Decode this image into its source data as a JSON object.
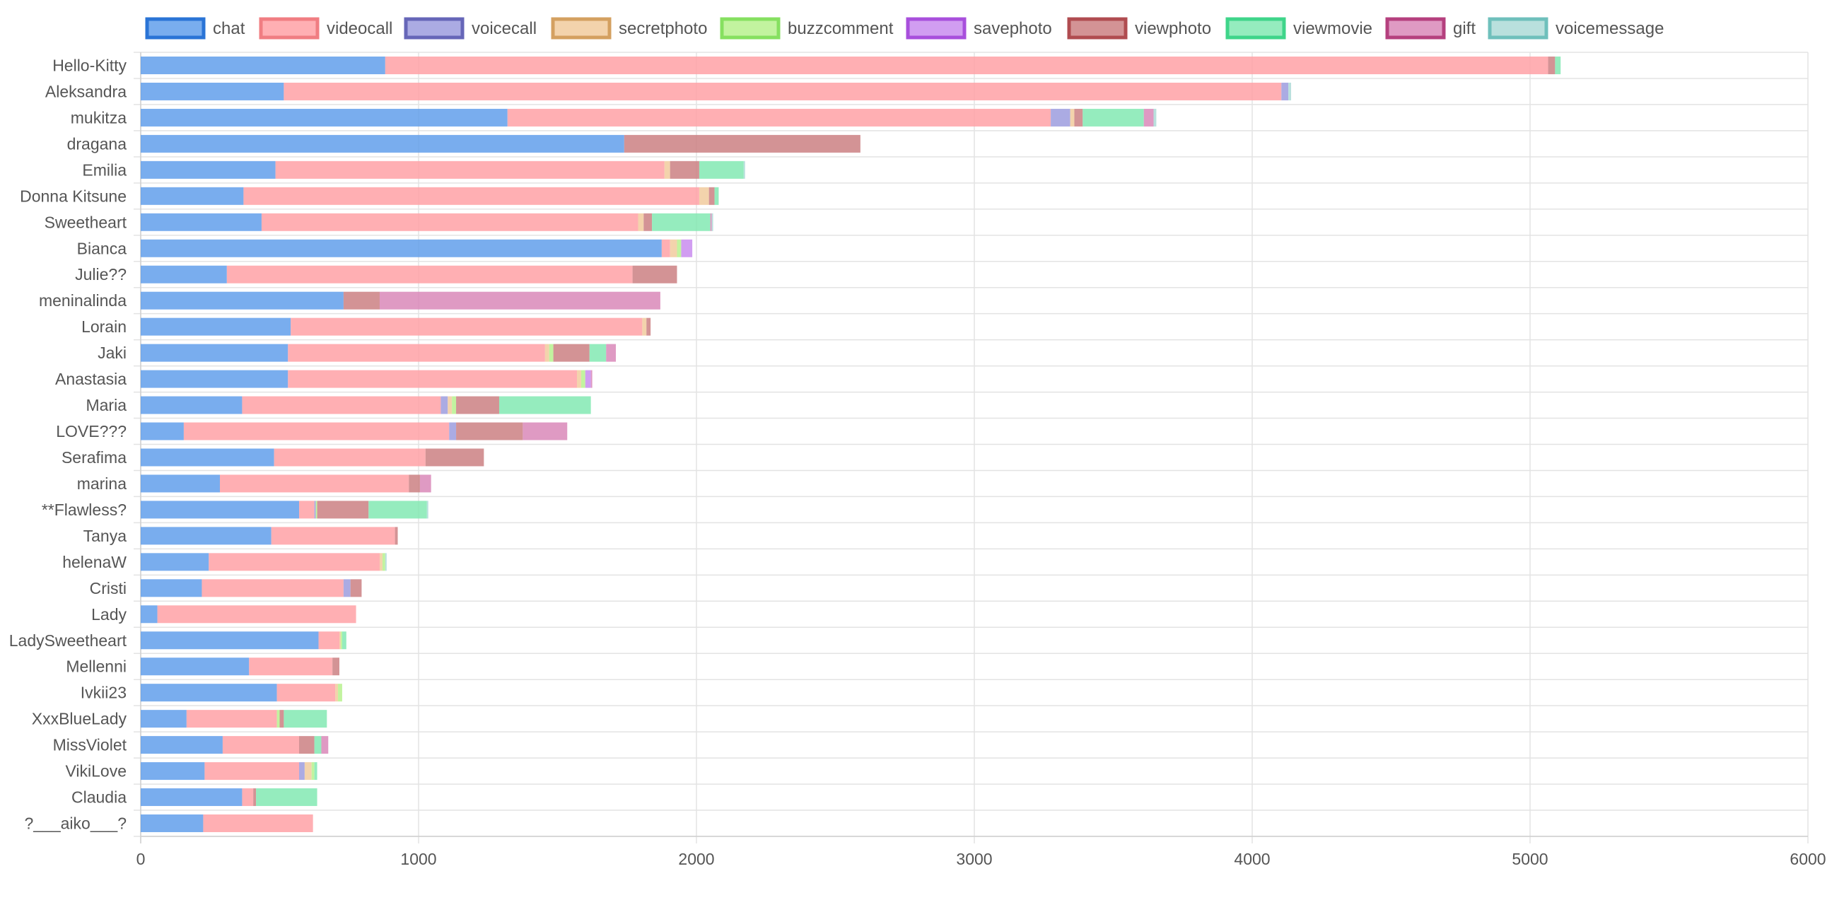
{
  "chart_data": {
    "type": "bar",
    "orientation": "horizontal",
    "stacked": true,
    "legend_position": "top",
    "grid": true,
    "xlim": [
      0,
      6000
    ],
    "x_ticks": [
      "0",
      "1000",
      "2000",
      "3000",
      "4000",
      "5000",
      "6000"
    ],
    "categories": [
      "Hello-Kitty",
      "Aleksandra",
      "mukitza",
      "dragana",
      "Emilia",
      "Donna Kitsune",
      "Sweetheart",
      "Bianca",
      "Julie??",
      "meninalinda",
      "Lorain",
      "Jaki",
      "Anastasia",
      "Maria",
      "LOVE???",
      "Serafima",
      "marina",
      "**Flawless?",
      "Tanya",
      "helenaW",
      "Cristi",
      "Lady",
      "LadySweetheart",
      "Mellenni",
      "Ivkii23",
      "XxxBlueLady",
      "MissViolet",
      "VikiLove",
      "Claudia",
      "?___aiko___?"
    ],
    "series": [
      {
        "name": "chat",
        "color": "#5b9bea",
        "border": "#2a74d6",
        "values": [
          880,
          515,
          1320,
          1740,
          485,
          370,
          435,
          1875,
          310,
          730,
          540,
          530,
          530,
          365,
          155,
          480,
          285,
          570,
          470,
          245,
          220,
          60,
          640,
          390,
          490,
          165,
          295,
          230,
          365,
          225
        ]
      },
      {
        "name": "videocall",
        "color": "#ff9ea2",
        "border": "#f07d82",
        "values": [
          4185,
          3590,
          1955,
          0,
          1400,
          1640,
          1355,
          30,
          1460,
          0,
          1265,
          925,
          1040,
          715,
          955,
          545,
          680,
          55,
          445,
          615,
          510,
          715,
          75,
          300,
          210,
          325,
          275,
          340,
          40,
          395
        ]
      },
      {
        "name": "voicecall",
        "color": "#9999dd",
        "border": "#6666b8",
        "values": [
          0,
          25,
          70,
          0,
          0,
          0,
          0,
          0,
          0,
          0,
          0,
          0,
          0,
          25,
          25,
          0,
          0,
          5,
          0,
          0,
          25,
          0,
          0,
          0,
          0,
          0,
          0,
          20,
          0,
          0
        ]
      },
      {
        "name": "secretphoto",
        "color": "#f0c99a",
        "border": "#d4a060",
        "values": [
          0,
          0,
          15,
          0,
          20,
          35,
          20,
          25,
          0,
          0,
          15,
          15,
          15,
          15,
          0,
          0,
          0,
          0,
          0,
          10,
          0,
          0,
          5,
          0,
          10,
          0,
          0,
          25,
          0,
          0
        ]
      },
      {
        "name": "buzzcomment",
        "color": "#b4f08a",
        "border": "#86e060",
        "values": [
          0,
          0,
          0,
          0,
          0,
          0,
          0,
          15,
          0,
          0,
          0,
          15,
          15,
          15,
          0,
          0,
          0,
          5,
          0,
          10,
          0,
          0,
          5,
          0,
          15,
          10,
          0,
          10,
          0,
          0
        ]
      },
      {
        "name": "savephoto",
        "color": "#c788ee",
        "border": "#a84fdc",
        "values": [
          0,
          0,
          0,
          0,
          0,
          0,
          0,
          40,
          0,
          0,
          0,
          0,
          20,
          0,
          0,
          0,
          0,
          0,
          0,
          0,
          0,
          0,
          0,
          0,
          0,
          0,
          0,
          0,
          0,
          0
        ]
      },
      {
        "name": "viewphoto",
        "color": "#c97b7e",
        "border": "#b04c50",
        "values": [
          25,
          0,
          30,
          850,
          105,
          20,
          30,
          0,
          160,
          130,
          15,
          130,
          0,
          155,
          240,
          210,
          40,
          185,
          10,
          0,
          40,
          0,
          0,
          25,
          0,
          15,
          55,
          0,
          10,
          0
        ]
      },
      {
        "name": "viewmovie",
        "color": "#7ee8b0",
        "border": "#3fd58a",
        "values": [
          20,
          0,
          220,
          0,
          160,
          15,
          210,
          0,
          0,
          0,
          0,
          60,
          0,
          330,
          0,
          0,
          0,
          210,
          0,
          0,
          0,
          0,
          15,
          0,
          0,
          155,
          25,
          10,
          220,
          0
        ]
      },
      {
        "name": "gift",
        "color": "#d884b6",
        "border": "#b5407e",
        "values": [
          0,
          0,
          35,
          0,
          0,
          0,
          5,
          0,
          0,
          1010,
          0,
          35,
          5,
          0,
          160,
          0,
          40,
          0,
          0,
          0,
          0,
          0,
          0,
          0,
          0,
          0,
          25,
          0,
          0,
          0
        ]
      },
      {
        "name": "voicemessage",
        "color": "#a9d9d6",
        "border": "#6fc0bc",
        "values": [
          0,
          10,
          10,
          0,
          5,
          0,
          5,
          0,
          0,
          0,
          0,
          0,
          0,
          0,
          0,
          0,
          0,
          5,
          0,
          5,
          0,
          0,
          0,
          0,
          0,
          0,
          0,
          0,
          0,
          0
        ]
      }
    ]
  }
}
